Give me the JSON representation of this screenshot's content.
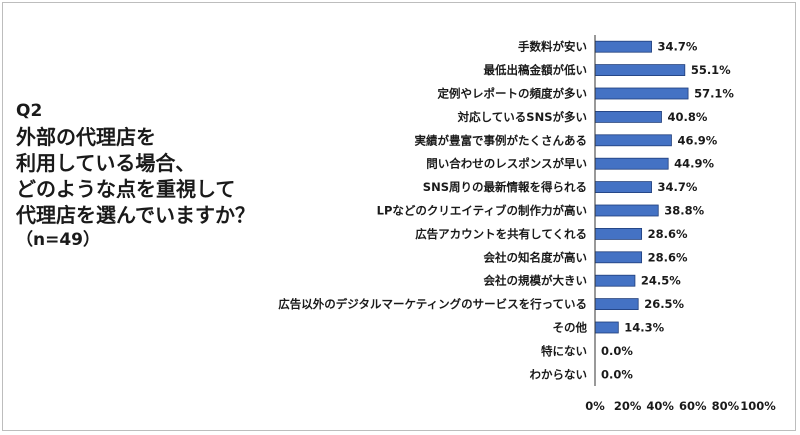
{
  "question": {
    "label": "Q2",
    "text": "外部の代理店を\n利用している場合、\nどのような点を重視して\n代理店を選んでいますか？",
    "n": "（n=49）"
  },
  "colors": {
    "bar": "#4472c4",
    "bar_stroke": "#1f3d7a",
    "axis": "#333333",
    "text": "#1a1a1a"
  },
  "chart_data": {
    "type": "bar",
    "orientation": "horizontal",
    "categories": [
      "手数料が安い",
      "最低出稿金額が低い",
      "定例やレポートの頻度が多い",
      "対応しているSNSが多い",
      "実績が豊富で事例がたくさんある",
      "問い合わせのレスポンスが早い",
      "SNS周りの最新情報を得られる",
      "LPなどのクリエイティブの制作力が高い",
      "広告アカウントを共有してくれる",
      "会社の知名度が高い",
      "会社の規模が大きい",
      "広告以外のデジタルマーケティングのサービスを行っている",
      "その他",
      "特にない",
      "わからない"
    ],
    "values": [
      34.7,
      55.1,
      57.1,
      40.8,
      46.9,
      44.9,
      34.7,
      38.8,
      28.6,
      28.6,
      24.5,
      26.5,
      14.3,
      0.0,
      0.0
    ],
    "value_labels": [
      "34.7%",
      "55.1%",
      "57.1%",
      "40.8%",
      "46.9%",
      "44.9%",
      "34.7%",
      "38.8%",
      "28.6%",
      "28.6%",
      "24.5%",
      "26.5%",
      "14.3%",
      "0.0%",
      "0.0%"
    ],
    "xlim": [
      0,
      100
    ],
    "xticks": [
      "0%",
      "20%",
      "40%",
      "60%",
      "80%",
      "100%"
    ],
    "grid": false
  }
}
